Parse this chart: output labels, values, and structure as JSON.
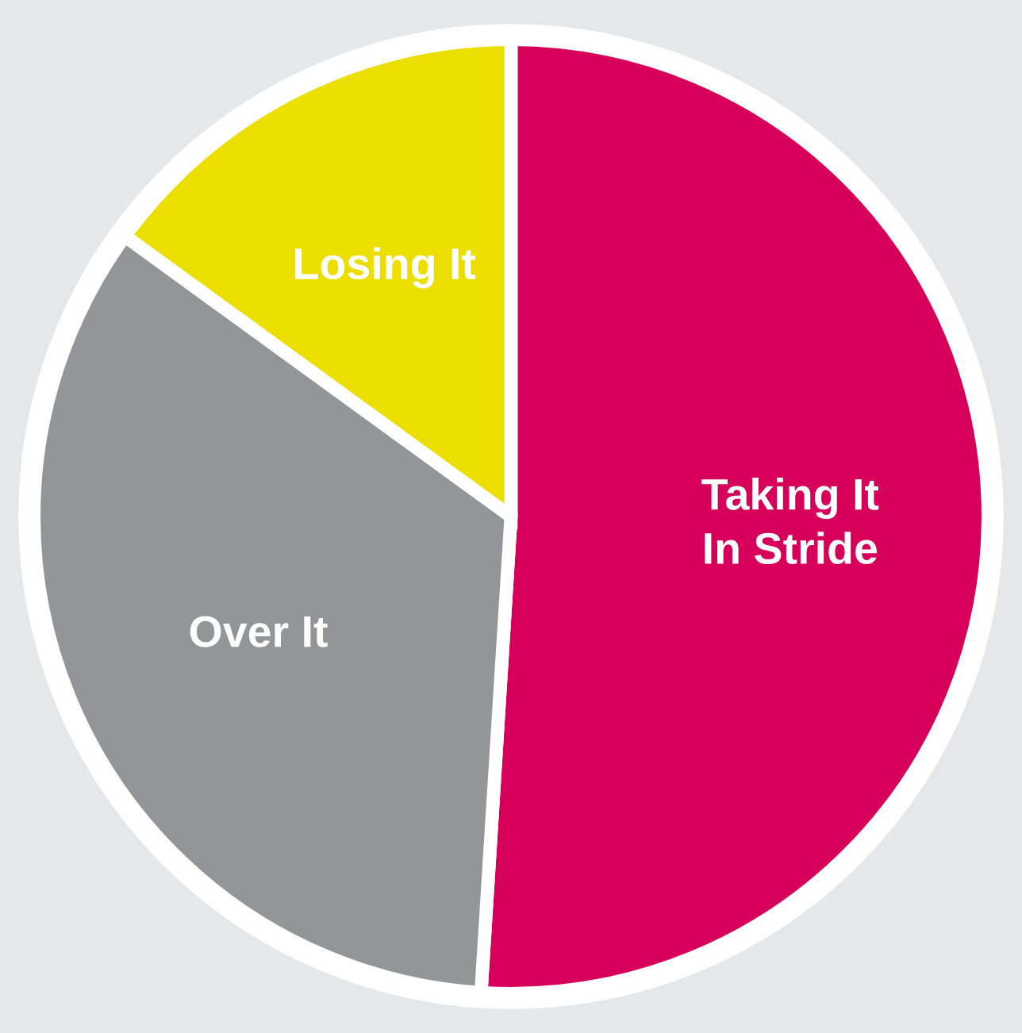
{
  "chart_data": {
    "type": "pie",
    "categories": [
      "Taking It\nIn Stride",
      "Over It",
      "Losing It"
    ],
    "values": [
      51,
      34,
      15
    ],
    "colors": [
      "#d6005a",
      "#939598",
      "#ecdf00"
    ]
  }
}
